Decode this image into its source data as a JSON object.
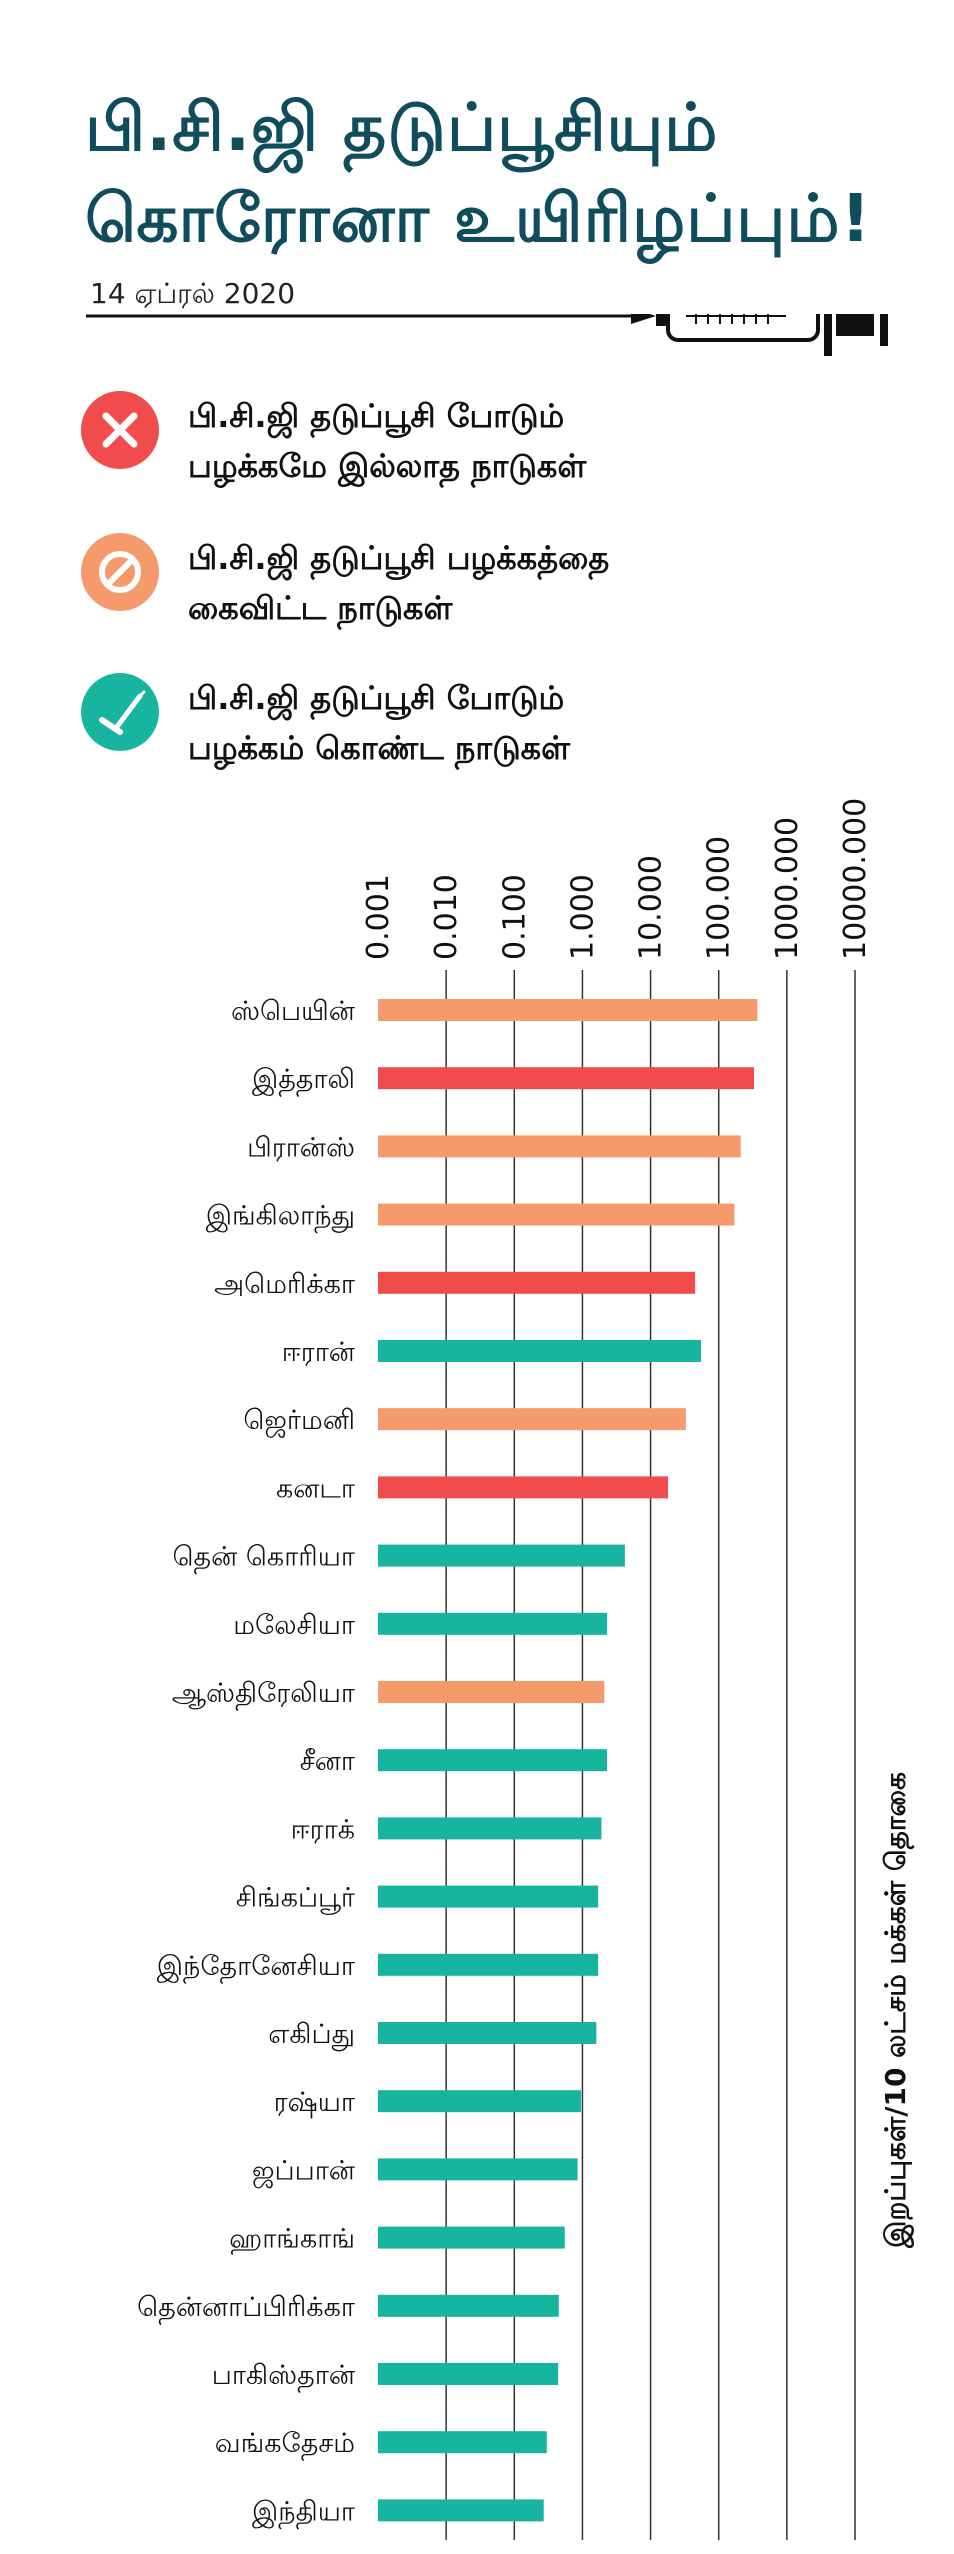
{
  "header": {
    "title_line1": "பி.சி.ஜி தடுப்பூசியும்",
    "title_line2": "கொரோனா உயிரிழப்பும்!",
    "date": "14 ஏப்ரல் 2020",
    "syringe_icon": "syringe-icon"
  },
  "legend": [
    {
      "key": "never",
      "line1": "பி.சி.ஜி தடுப்பூசி போடும்",
      "line2": "பழக்கமே இல்லாத நாடுகள்",
      "color": "#f04c4c",
      "icon": "close-icon"
    },
    {
      "key": "abandoned",
      "line1": "பி.சி.ஜி தடுப்பூசி பழக்கத்தை",
      "line2": "கைவிட்ட நாடுகள்",
      "color": "#f59b6b",
      "icon": "ban-icon"
    },
    {
      "key": "current",
      "line1": "பி.சி.ஜி தடுப்பூசி போடும்",
      "line2": "பழக்கம் கொண்ட நாடுகள்",
      "color": "#17b5a0",
      "icon": "syringe-icon"
    }
  ],
  "chart_data": {
    "type": "bar",
    "orientation": "horizontal",
    "x_scale": "log",
    "xlim": [
      0.001,
      10000
    ],
    "x_ticks": [
      "0.001",
      "0.010",
      "0.100",
      "1.000",
      "10.000",
      "100.000",
      "1000.000",
      "10000.000"
    ],
    "x_tick_values": [
      0.001,
      0.01,
      0.1,
      1,
      10,
      100,
      1000,
      10000
    ],
    "xlabel": "இறப்புகள்/10 லட்சம் மக்கள் தொகை",
    "grid": true,
    "colors": {
      "never": "#f04c4c",
      "abandoned": "#f59b6b",
      "current": "#17b5a0"
    },
    "categories": [
      "ஸ்பெயின்",
      "இத்தாலி",
      "பிரான்ஸ்",
      "இங்கிலாந்து",
      "அமெரிக்கா",
      "ஈரான்",
      "ஜெர்மனி",
      "கனடா",
      "தென் கொரியா",
      "மலேசியா",
      "ஆஸ்திரேலியா",
      "சீனா",
      "ஈராக்",
      "சிங்கப்பூர்",
      "இந்தோனேசியா",
      "எகிப்து",
      "ரஷ்யா",
      "ஜப்பான்",
      "ஹாங்காங்",
      "தென்னாப்பிரிக்கா",
      "பாகிஸ்தான்",
      "வங்கதேசம்",
      "இந்தியா"
    ],
    "values": [
      370,
      330,
      210,
      170,
      45,
      55,
      33,
      18,
      4.2,
      2.3,
      2.1,
      2.3,
      1.9,
      1.7,
      1.7,
      1.6,
      0.95,
      0.85,
      0.55,
      0.45,
      0.44,
      0.3,
      0.27
    ],
    "groups": [
      "abandoned",
      "never",
      "abandoned",
      "abandoned",
      "never",
      "current",
      "abandoned",
      "never",
      "current",
      "current",
      "abandoned",
      "current",
      "current",
      "current",
      "current",
      "current",
      "current",
      "current",
      "current",
      "current",
      "current",
      "current",
      "current"
    ]
  }
}
